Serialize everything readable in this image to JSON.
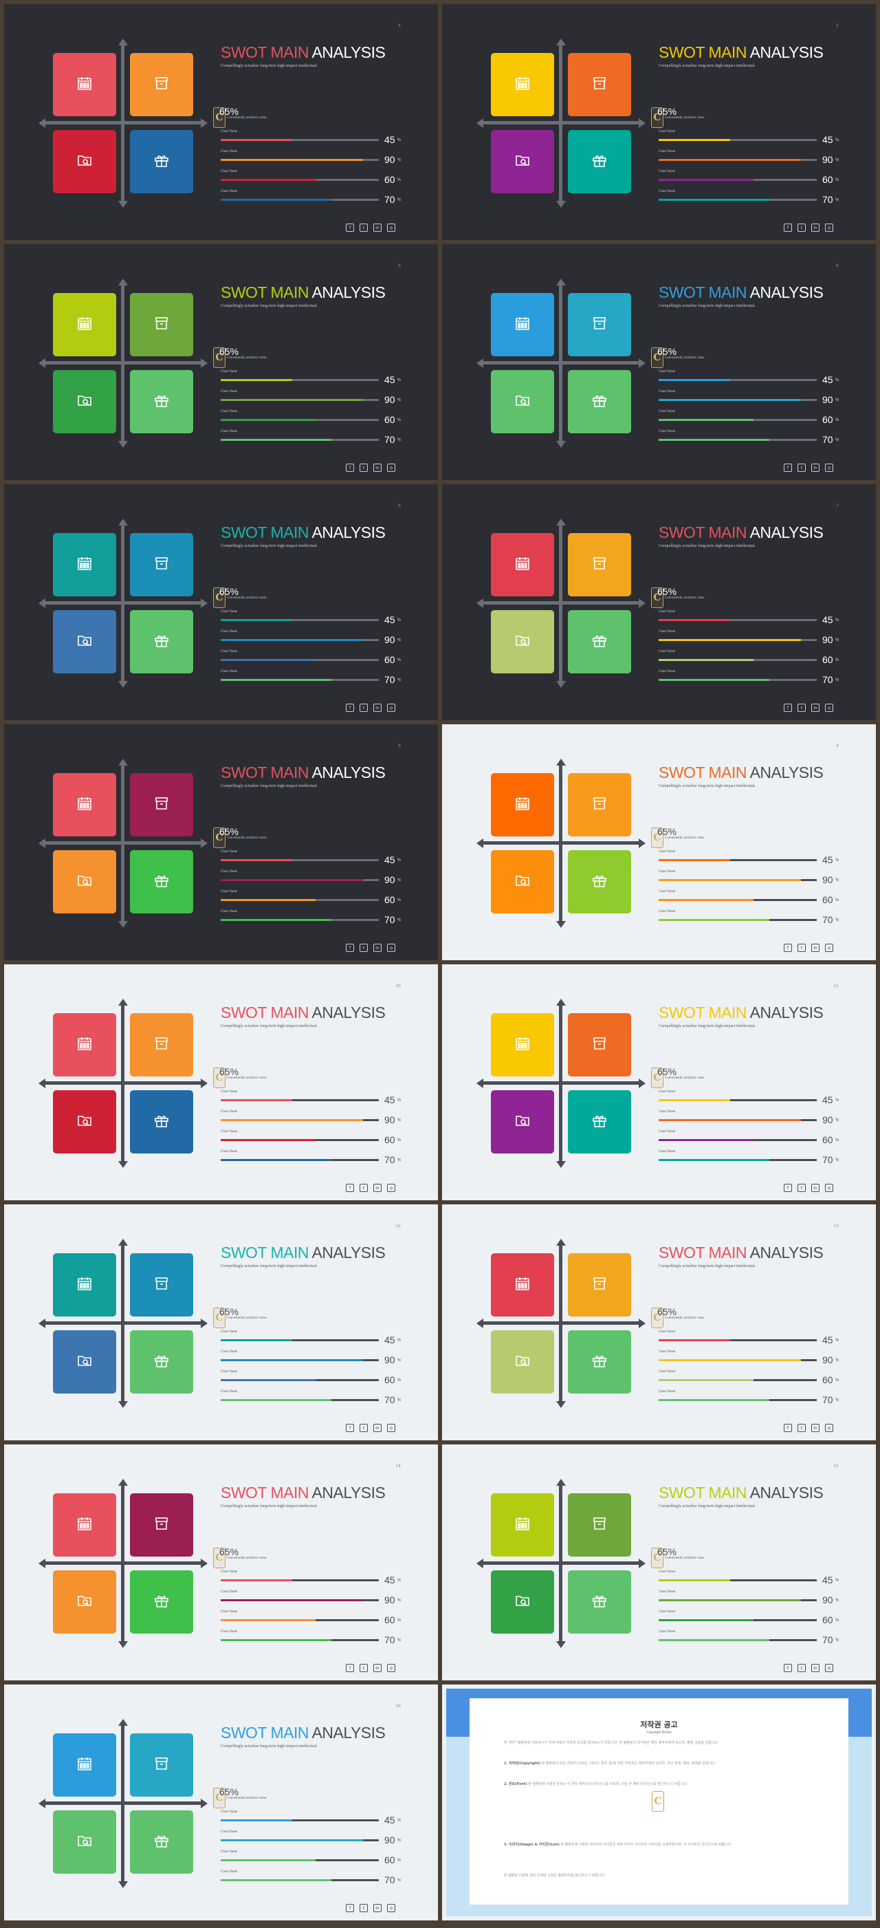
{
  "slides": [
    {
      "theme": "dark",
      "page": "4",
      "title_accent": "SWOT MAIN",
      "title_rest": "ANALYSIS",
      "accent": "#e8505b",
      "colors": [
        "#e8505b",
        "#f5922f",
        "#cf2136",
        "#226aa6"
      ],
      "bar_colors": [
        "#e8505b",
        "#f5922f",
        "#cf2136",
        "#226aa6"
      ]
    },
    {
      "theme": "dark",
      "page": "5",
      "title_accent": "SWOT MAIN",
      "title_rest": "ANALYSIS",
      "accent": "#f6c700",
      "colors": [
        "#f9c800",
        "#ef6a23",
        "#8f2494",
        "#00a99a"
      ],
      "bar_colors": [
        "#f9c800",
        "#ef6a23",
        "#8f2494",
        "#00a99a"
      ]
    },
    {
      "theme": "dark",
      "page": "6",
      "title_accent": "SWOT MAIN",
      "title_rest": "ANALYSIS",
      "accent": "#b8cf10",
      "colors": [
        "#b4cc0f",
        "#6fa83a",
        "#33a146",
        "#5ec26d"
      ],
      "bar_colors": [
        "#b4cc0f",
        "#6fa83a",
        "#33a146",
        "#5ec26d"
      ]
    },
    {
      "theme": "dark",
      "page": "6",
      "title_accent": "SWOT MAIN",
      "title_rest": "ANALYSIS",
      "accent": "#2f9fe0",
      "colors": [
        "#2b9ddc",
        "#27a7c6",
        "#5ec26d",
        "#5ec26d"
      ],
      "bar_colors": [
        "#2b9ddc",
        "#27a7c6",
        "#5ec26d",
        "#5ec26d"
      ]
    },
    {
      "theme": "dark",
      "page": "6",
      "title_accent": "SWOT MAIN",
      "title_rest": "ANALYSIS",
      "accent": "#19b3ad",
      "colors": [
        "#129f9c",
        "#1b8fb7",
        "#3d75b0",
        "#5ec26d"
      ],
      "bar_colors": [
        "#129f9c",
        "#1b8fb7",
        "#3d75b0",
        "#5ec26d"
      ]
    },
    {
      "theme": "dark",
      "page": "7",
      "title_accent": "SWOT MAIN",
      "title_rest": "ANALYSIS",
      "accent": "#e8505b",
      "colors": [
        "#e23f4f",
        "#f2a51e",
        "#b6cb6d",
        "#5ec26d"
      ],
      "bar_colors": [
        "#e23f4f",
        "#f2c31e",
        "#b6cb6d",
        "#5ec26d"
      ]
    },
    {
      "theme": "dark",
      "page": "8",
      "title_accent": "SWOT MAIN",
      "title_rest": "ANALYSIS",
      "accent": "#e8505b",
      "colors": [
        "#e8505b",
        "#9b1f52",
        "#f5922f",
        "#3ec04a"
      ],
      "bar_colors": [
        "#e8505b",
        "#9b1f52",
        "#f5922f",
        "#3ec04a"
      ]
    },
    {
      "theme": "light",
      "page": "9",
      "title_accent": "SWOT MAIN",
      "title_rest": "ANALYSIS",
      "accent": "#ef6a23",
      "colors": [
        "#ff6a00",
        "#f89b1c",
        "#fd8f0c",
        "#8fcb2c"
      ],
      "bar_colors": [
        "#ff6a00",
        "#f89b1c",
        "#fd8f0c",
        "#8fcb2c"
      ]
    },
    {
      "theme": "light",
      "page": "10",
      "title_accent": "SWOT MAIN",
      "title_rest": "ANALYSIS",
      "accent": "#e8505b",
      "colors": [
        "#e8505b",
        "#f5922f",
        "#cf2136",
        "#226aa6"
      ],
      "bar_colors": [
        "#e8505b",
        "#f5922f",
        "#cf2136",
        "#226aa6"
      ]
    },
    {
      "theme": "light",
      "page": "11",
      "title_accent": "SWOT MAIN",
      "title_rest": "ANALYSIS",
      "accent": "#f6c700",
      "colors": [
        "#f9c800",
        "#ef6a23",
        "#8f2494",
        "#00a99a"
      ],
      "bar_colors": [
        "#f9c800",
        "#ef6a23",
        "#8f2494",
        "#00a99a"
      ]
    },
    {
      "theme": "light",
      "page": "12",
      "title_accent": "SWOT MAIN",
      "title_rest": "ANALYSIS",
      "accent": "#19b3ad",
      "colors": [
        "#129f9c",
        "#1b8fb7",
        "#3d75b0",
        "#5ec26d"
      ],
      "bar_colors": [
        "#129f9c",
        "#1b8fb7",
        "#3d75b0",
        "#5ec26d"
      ]
    },
    {
      "theme": "light",
      "page": "13",
      "title_accent": "SWOT MAIN",
      "title_rest": "ANALYSIS",
      "accent": "#e8505b",
      "colors": [
        "#e23f4f",
        "#f2a51e",
        "#b6cb6d",
        "#5ec26d"
      ],
      "bar_colors": [
        "#e23f4f",
        "#f2c31e",
        "#b6cb6d",
        "#5ec26d"
      ]
    },
    {
      "theme": "light",
      "page": "14",
      "title_accent": "SWOT MAIN",
      "title_rest": "ANALYSIS",
      "accent": "#e8505b",
      "colors": [
        "#e8505b",
        "#9b1f52",
        "#f5922f",
        "#3ec04a"
      ],
      "bar_colors": [
        "#e8505b",
        "#9b1f52",
        "#f5922f",
        "#3ec04a"
      ]
    },
    {
      "theme": "light",
      "page": "15",
      "title_accent": "SWOT MAIN",
      "title_rest": "ANALYSIS",
      "accent": "#b8cf10",
      "colors": [
        "#b4cc0f",
        "#6fa83a",
        "#33a146",
        "#5ec26d"
      ],
      "bar_colors": [
        "#b4cc0f",
        "#6fa83a",
        "#33a146",
        "#5ec26d"
      ]
    },
    {
      "theme": "light",
      "page": "16",
      "title_accent": "SWOT MAIN",
      "title_rest": "ANALYSIS",
      "accent": "#2f9fe0",
      "colors": [
        "#2b9ddc",
        "#27a7c6",
        "#5ec26d",
        "#5ec26d"
      ],
      "bar_colors": [
        "#2b9ddc",
        "#27a7c6",
        "#5ec26d",
        "#5ec26d"
      ]
    }
  ],
  "common": {
    "subtitle": "Compellingly actualize long-term high-impact intellectual.",
    "percent": "65%",
    "percent_label": "Conveniently architect value",
    "badge_letter": "C",
    "bars": [
      {
        "name": "Chart Name",
        "value": 45
      },
      {
        "name": "Chart Name",
        "value": 90
      },
      {
        "name": "Chart Name",
        "value": 60
      },
      {
        "name": "Chart Name",
        "value": 70
      }
    ],
    "bar_unit": "%",
    "socials": [
      "f",
      "t",
      "in",
      "◎"
    ],
    "icons": [
      "calendar-icon",
      "archive-box-icon",
      "folder-search-icon",
      "gift-icon"
    ]
  },
  "copyright": {
    "title": "저작권 공고",
    "subtitle": "Copyright Notice",
    "p1": "본 ‘PPT’ 템플릿을 사용하시기 전에 아래의 저작권 공고를 읽어보시기 바랍니다. 본 템플릿의 저작권은 해당 제작자에게 있으며, 불법 사용을 금합니다.",
    "p2_head": "1. 저작권(Copyright)",
    "p2": " 본 템플릿의 모든 콘텐츠(디자인, 이미지, 폰트 등)에 대한 저작권은 제작자에게 있으며, 무단 복제, 배포, 판매를 금합니다.",
    "p3_head": "2. 폰트(Font)",
    "p3": " 본 템플릿에 사용된 폰트는 각 폰트 제작사의 라이선스를 따르며, 사용 전 해당 라이선스를 확인하시기 바랍니다.",
    "p4_head": "3. 이미지(Image) & 아이콘(Icon)",
    "p4": " 본 템플릿에 사용된 이미지와 아이콘은 무료 이미지 사이트의 이미지를 사용하였으며, 각 사이트의 라이선스를 따릅니다.",
    "p5": "본 템플릿 이용에 관한 자세한 사항은 홈페이지를 참고하시기 바랍니다."
  }
}
